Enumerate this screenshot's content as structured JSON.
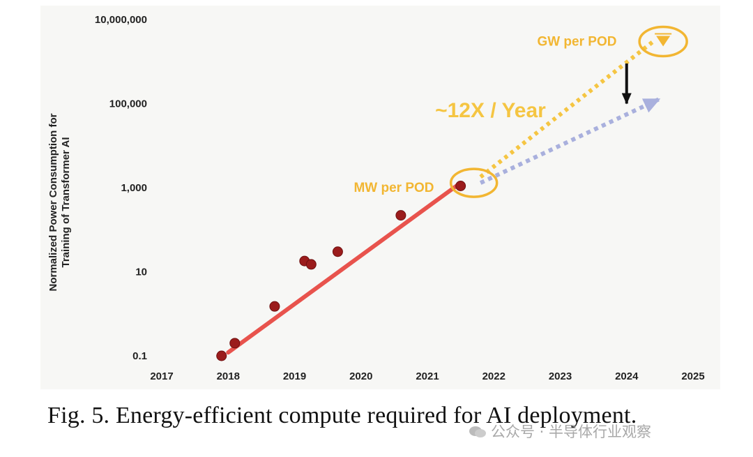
{
  "chart_data": {
    "type": "scatter",
    "ylabel": "Normalized Power Consumption for Training of Transformer AI",
    "ylabel_lines": [
      "Normalized Power Consumption for",
      "Training of Transformer AI"
    ],
    "yscale": "log",
    "ylim": [
      0.1,
      10000000
    ],
    "yticks": [
      0.1,
      10,
      1000,
      100000,
      10000000
    ],
    "ytick_labels": [
      "0.1",
      "10",
      "1,000",
      "100,000",
      "10,000,000"
    ],
    "xlim": [
      2017,
      2025
    ],
    "xticks": [
      2017,
      2018,
      2019,
      2020,
      2021,
      2022,
      2023,
      2024,
      2025
    ],
    "xtick_labels": [
      "2017",
      "2018",
      "2019",
      "2020",
      "2021",
      "2022",
      "2023",
      "2024",
      "2025"
    ],
    "grid": false,
    "series": [
      {
        "type": "scatter",
        "color": "#9b1c1c",
        "points": [
          {
            "x": 2017.9,
            "y": 0.1
          },
          {
            "x": 2018.1,
            "y": 0.2
          },
          {
            "x": 2018.7,
            "y": 1.5
          },
          {
            "x": 2019.15,
            "y": 18
          },
          {
            "x": 2019.25,
            "y": 15
          },
          {
            "x": 2019.65,
            "y": 30
          },
          {
            "x": 2020.6,
            "y": 220
          },
          {
            "x": 2021.5,
            "y": 1100
          }
        ]
      },
      {
        "type": "trend-solid",
        "color": "#e8534d",
        "points": [
          {
            "x": 2018.0,
            "y": 0.12
          },
          {
            "x": 2021.5,
            "y": 1300
          }
        ]
      },
      {
        "type": "trend-dotted",
        "color": "#f5c542",
        "points": [
          {
            "x": 2021.8,
            "y": 1800
          },
          {
            "x": 2024.4,
            "y": 3000000
          }
        ]
      },
      {
        "type": "trend-dotted-arrow",
        "color": "#a9b0dd",
        "points": [
          {
            "x": 2021.8,
            "y": 1300
          },
          {
            "x": 2024.5,
            "y": 130000
          }
        ]
      }
    ],
    "annotations": [
      {
        "text": "~12X / Year",
        "x": 2021.95,
        "y": 70000,
        "color": "#f5c542"
      },
      {
        "text": "MW per POD",
        "x": 2021.1,
        "y": 1000,
        "color": "#f2b632"
      },
      {
        "text": "GW per POD",
        "x": 2023.85,
        "y": 3000000,
        "color": "#f2b632"
      }
    ],
    "highlights": [
      {
        "label": "MW per POD",
        "x": 2021.7,
        "y": 1300,
        "color": "#f2b632"
      },
      {
        "label": "GW per POD",
        "x": 2024.55,
        "y": 3000000,
        "color": "#f2b632"
      }
    ],
    "down_arrow": {
      "x": 2024.0,
      "y_from": 900000,
      "y_to": 100000,
      "color": "#111111"
    }
  },
  "caption": "Fig. 5. Energy-efficient compute required for AI deployment.",
  "watermark": "公众号 · 半导体行业观察"
}
